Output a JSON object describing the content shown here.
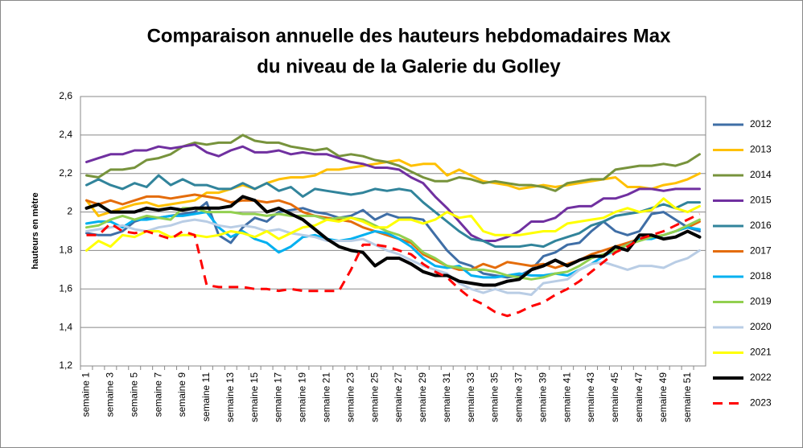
{
  "chart_data": {
    "type": "line",
    "title": [
      "Comparaison annuelle des hauteurs hebdomadaires Max",
      "du niveau de la Galerie du Golley"
    ],
    "y_label": "hauteurs en mètre",
    "categories": [
      "semaine 1",
      null,
      "semaine 3",
      null,
      "semaine 5",
      null,
      "semaine 7",
      null,
      "semaine 9",
      null,
      "semaine 11",
      null,
      "semaine 13",
      null,
      "semaine 15",
      null,
      "semaine 17",
      null,
      "semaine 19",
      null,
      "semaine 21",
      null,
      "semaine 23",
      null,
      "semaine 25",
      null,
      "semaine 27",
      null,
      "semaine 29",
      null,
      "semaine 31",
      null,
      "semaine 33",
      null,
      "semaine 35",
      null,
      "semaine 37",
      null,
      "semaine 39",
      null,
      "semaine 41",
      null,
      "semaine 43",
      null,
      "semaine 45",
      null,
      "semaine 47",
      null,
      "semaine 49",
      null,
      "semaine 51",
      null
    ],
    "ylim": [
      1.2,
      2.6
    ],
    "yticks": [
      {
        "value": 1.2,
        "label": "1,2"
      },
      {
        "value": 1.4,
        "label": "1,4"
      },
      {
        "value": 1.6,
        "label": "1,6"
      },
      {
        "value": 1.8,
        "label": "1,8"
      },
      2,
      {
        "value": 2.2,
        "label": "2,2"
      },
      {
        "value": 2.4,
        "label": "2,4"
      },
      {
        "value": 2.6,
        "label": "2,6"
      }
    ],
    "grid": true,
    "legend": "right",
    "series": [
      {
        "name": "2012",
        "color": "#3f6ea6",
        "values": [
          1.89,
          1.88,
          1.88,
          1.9,
          1.95,
          1.97,
          1.97,
          1.98,
          1.99,
          2.0,
          2.05,
          1.88,
          1.84,
          1.92,
          1.97,
          1.95,
          2.0,
          2.01,
          2.02,
          2.0,
          1.99,
          1.97,
          1.98,
          2.01,
          1.96,
          1.99,
          1.97,
          1.97,
          1.96,
          1.88,
          1.8,
          1.74,
          1.72,
          1.68,
          1.67,
          1.66,
          1.67,
          1.7,
          1.77,
          1.79,
          1.83,
          1.84,
          1.9,
          1.95,
          1.9,
          1.88,
          1.9,
          1.99,
          2.0,
          1.96,
          1.92,
          1.9
        ]
      },
      {
        "name": "2013",
        "color": "#ffc000",
        "values": [
          2.06,
          1.98,
          2.0,
          2.02,
          2.04,
          2.05,
          2.03,
          2.04,
          2.05,
          2.06,
          2.1,
          2.1,
          2.12,
          2.14,
          2.12,
          2.15,
          2.17,
          2.18,
          2.18,
          2.19,
          2.22,
          2.22,
          2.23,
          2.24,
          2.25,
          2.26,
          2.27,
          2.24,
          2.25,
          2.25,
          2.19,
          2.22,
          2.19,
          2.16,
          2.15,
          2.14,
          2.12,
          2.13,
          2.14,
          2.13,
          2.14,
          2.15,
          2.16,
          2.17,
          2.18,
          2.13,
          2.13,
          2.12,
          2.14,
          2.15,
          2.17,
          2.2
        ]
      },
      {
        "name": "2014",
        "color": "#77933c",
        "values": [
          2.19,
          2.18,
          2.22,
          2.22,
          2.23,
          2.27,
          2.28,
          2.3,
          2.34,
          2.36,
          2.35,
          2.36,
          2.36,
          2.4,
          2.37,
          2.36,
          2.36,
          2.34,
          2.33,
          2.32,
          2.33,
          2.29,
          2.3,
          2.29,
          2.27,
          2.26,
          2.24,
          2.21,
          2.18,
          2.16,
          2.16,
          2.18,
          2.17,
          2.15,
          2.16,
          2.15,
          2.14,
          2.14,
          2.13,
          2.11,
          2.15,
          2.16,
          2.17,
          2.17,
          2.22,
          2.23,
          2.24,
          2.24,
          2.25,
          2.24,
          2.26,
          2.3
        ]
      },
      {
        "name": "2015",
        "color": "#7030a0",
        "values": [
          2.26,
          2.28,
          2.3,
          2.3,
          2.32,
          2.32,
          2.34,
          2.33,
          2.34,
          2.35,
          2.31,
          2.29,
          2.32,
          2.34,
          2.31,
          2.31,
          2.32,
          2.3,
          2.31,
          2.3,
          2.3,
          2.28,
          2.26,
          2.25,
          2.23,
          2.23,
          2.22,
          2.18,
          2.15,
          2.08,
          2.02,
          1.95,
          1.88,
          1.85,
          1.85,
          1.87,
          1.9,
          1.95,
          1.95,
          1.97,
          2.02,
          2.03,
          2.03,
          2.07,
          2.07,
          2.09,
          2.12,
          2.12,
          2.11,
          2.12,
          2.12,
          2.12
        ]
      },
      {
        "name": "2016",
        "color": "#31849b",
        "values": [
          2.14,
          2.17,
          2.14,
          2.12,
          2.15,
          2.13,
          2.19,
          2.14,
          2.17,
          2.14,
          2.14,
          2.12,
          2.12,
          2.15,
          2.12,
          2.15,
          2.11,
          2.13,
          2.08,
          2.12,
          2.11,
          2.1,
          2.09,
          2.1,
          2.12,
          2.11,
          2.12,
          2.11,
          2.05,
          2.0,
          1.95,
          1.9,
          1.86,
          1.85,
          1.82,
          1.82,
          1.82,
          1.83,
          1.82,
          1.85,
          1.87,
          1.89,
          1.93,
          1.95,
          1.98,
          1.99,
          2.0,
          2.02,
          2.04,
          2.02,
          2.05,
          2.05
        ]
      },
      {
        "name": "2017",
        "color": "#e46c0a",
        "values": [
          2.06,
          2.04,
          2.06,
          2.04,
          2.06,
          2.08,
          2.08,
          2.07,
          2.08,
          2.09,
          2.08,
          2.07,
          2.05,
          2.06,
          2.06,
          2.05,
          2.06,
          2.04,
          2.0,
          1.98,
          1.97,
          1.96,
          1.95,
          1.92,
          1.9,
          1.88,
          1.86,
          1.84,
          1.78,
          1.75,
          1.72,
          1.7,
          1.7,
          1.73,
          1.71,
          1.74,
          1.73,
          1.72,
          1.73,
          1.71,
          1.73,
          1.75,
          1.78,
          1.8,
          1.82,
          1.84,
          1.86,
          1.87,
          1.88,
          1.9,
          1.92,
          1.95
        ]
      },
      {
        "name": "2018",
        "color": "#00b0f0",
        "values": [
          1.94,
          1.95,
          1.95,
          1.92,
          1.96,
          1.96,
          1.97,
          1.98,
          1.98,
          1.99,
          2.0,
          1.92,
          1.87,
          1.9,
          1.86,
          1.84,
          1.79,
          1.82,
          1.87,
          1.88,
          1.86,
          1.85,
          1.86,
          1.88,
          1.9,
          1.89,
          1.86,
          1.82,
          1.76,
          1.72,
          1.71,
          1.72,
          1.67,
          1.66,
          1.66,
          1.67,
          1.68,
          1.67,
          1.67,
          1.68,
          1.67,
          1.7,
          1.73,
          1.77,
          1.8,
          1.83,
          1.86,
          1.86,
          1.88,
          1.9,
          1.92,
          1.91
        ]
      },
      {
        "name": "2019",
        "color": "#92d050",
        "values": [
          1.92,
          1.93,
          1.96,
          1.98,
          1.96,
          1.98,
          1.97,
          1.96,
          2.02,
          2.02,
          2.0,
          2.0,
          2.0,
          1.99,
          1.99,
          1.98,
          1.99,
          1.98,
          1.98,
          1.98,
          1.96,
          1.97,
          1.97,
          1.96,
          1.93,
          1.9,
          1.88,
          1.85,
          1.79,
          1.76,
          1.72,
          1.71,
          1.7,
          1.7,
          1.69,
          1.67,
          1.66,
          1.65,
          1.66,
          1.68,
          1.69,
          1.72,
          1.76,
          1.78,
          1.8,
          1.83,
          1.85,
          1.87,
          1.88,
          1.9,
          1.93,
          1.96
        ]
      },
      {
        "name": "2020",
        "color": "#b9cde5",
        "values": [
          1.9,
          1.91,
          1.92,
          1.93,
          1.91,
          1.9,
          1.92,
          1.93,
          1.95,
          1.96,
          1.95,
          1.93,
          1.92,
          1.93,
          1.92,
          1.9,
          1.91,
          1.89,
          1.88,
          1.87,
          1.85,
          1.85,
          1.85,
          1.86,
          1.83,
          1.8,
          1.78,
          1.75,
          1.72,
          1.7,
          1.68,
          1.63,
          1.6,
          1.58,
          1.6,
          1.58,
          1.58,
          1.57,
          1.63,
          1.64,
          1.65,
          1.7,
          1.73,
          1.74,
          1.72,
          1.7,
          1.72,
          1.72,
          1.71,
          1.74,
          1.76,
          1.8
        ]
      },
      {
        "name": "2021",
        "color": "#ffff00",
        "values": [
          1.8,
          1.85,
          1.82,
          1.88,
          1.87,
          1.9,
          1.9,
          1.87,
          1.88,
          1.88,
          1.87,
          1.88,
          1.9,
          1.89,
          1.87,
          1.9,
          1.86,
          1.89,
          1.92,
          1.93,
          1.96,
          1.95,
          1.97,
          1.95,
          1.92,
          1.92,
          1.96,
          1.96,
          1.94,
          1.96,
          2.0,
          1.97,
          1.98,
          1.9,
          1.88,
          1.88,
          1.88,
          1.89,
          1.9,
          1.9,
          1.94,
          1.95,
          1.96,
          1.97,
          2.0,
          2.02,
          2.0,
          2.01,
          2.07,
          2.02,
          2.0,
          2.03
        ]
      },
      {
        "name": "2022",
        "color": "#000000",
        "width": 4,
        "values": [
          2.02,
          2.04,
          2.0,
          2.0,
          2.0,
          2.02,
          2.01,
          2.02,
          2.01,
          2.02,
          2.02,
          2.02,
          2.03,
          2.08,
          2.06,
          2.0,
          2.02,
          1.99,
          1.96,
          1.91,
          1.86,
          1.82,
          1.8,
          1.79,
          1.72,
          1.76,
          1.76,
          1.73,
          1.69,
          1.67,
          1.67,
          1.64,
          1.63,
          1.62,
          1.62,
          1.64,
          1.65,
          1.7,
          1.72,
          1.75,
          1.72,
          1.75,
          1.77,
          1.77,
          1.82,
          1.8,
          1.88,
          1.88,
          1.86,
          1.87,
          1.9,
          1.87
        ]
      },
      {
        "name": "2023",
        "color": "#ff0000",
        "dashed": true,
        "values": [
          1.88,
          1.88,
          1.94,
          1.9,
          1.89,
          1.9,
          1.88,
          1.86,
          1.9,
          1.88,
          1.62,
          1.61,
          1.61,
          1.61,
          1.6,
          1.6,
          1.59,
          1.6,
          1.59,
          1.59,
          1.59,
          1.59,
          1.7,
          1.83,
          1.83,
          1.82,
          1.8,
          1.78,
          1.73,
          1.69,
          1.66,
          1.6,
          1.55,
          1.52,
          1.48,
          1.46,
          1.48,
          1.51,
          1.53,
          1.57,
          1.6,
          1.64,
          1.69,
          1.74,
          1.79,
          1.82,
          1.86,
          1.88,
          1.9,
          1.93,
          1.96,
          1.99
        ]
      }
    ]
  }
}
